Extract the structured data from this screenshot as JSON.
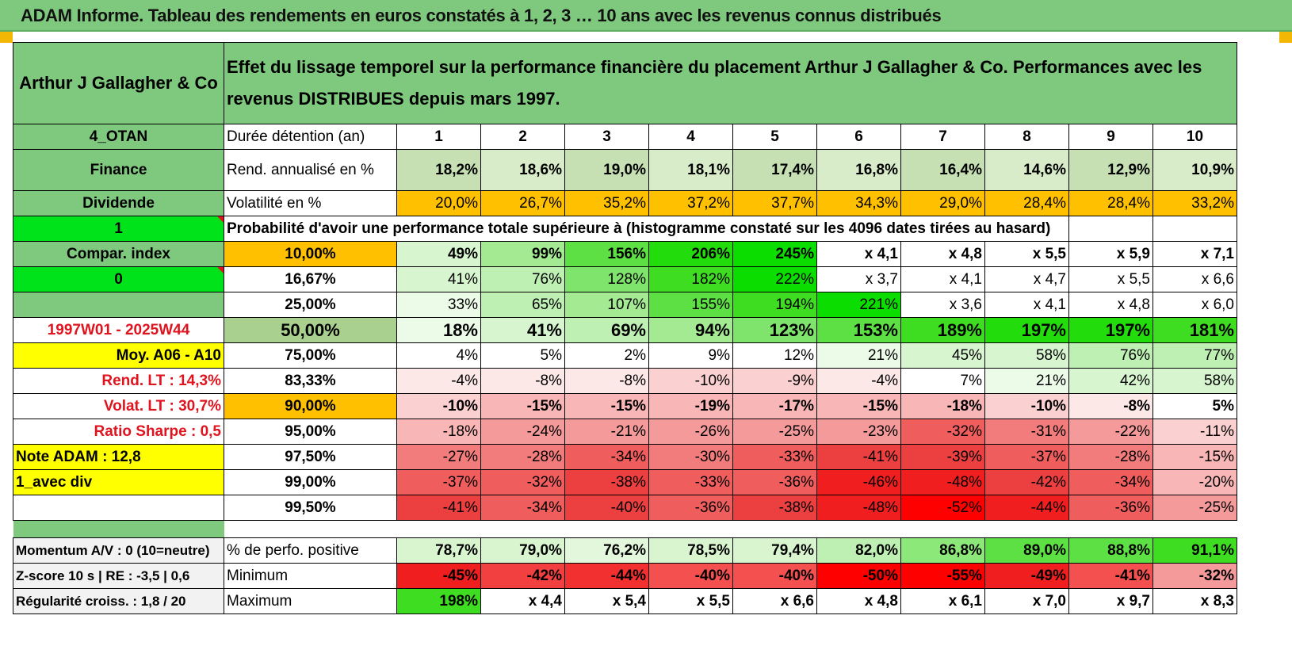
{
  "title": "ADAM Informe. Tableau des rendements en euros constatés à 1, 2, 3 … 10 ans avec les revenus connus distribués",
  "header": {
    "fund": "Arthur J Gallagher & Co",
    "description": "Effet du lissage temporel sur la performance financière du placement Arthur J Gallagher & Co. Performances avec les revenus DISTRIBUES depuis mars 1997."
  },
  "left_labels": {
    "code": "4_OTAN",
    "sector": "Finance",
    "type": "Dividende",
    "flag1": "1",
    "compar": "Compar. index",
    "flag0": "0",
    "period": "1997W01 - 2025W44",
    "moy": "Moy. A06 - A10",
    "rend_lt": "Rend. LT :    14,3%",
    "volat_lt": "Volat. LT :    30,7%",
    "sharpe": "Ratio Sharpe :    0,5",
    "note": "Note ADAM : 12,8",
    "div": "1_avec div",
    "momentum": "Momentum A/V : 0 (10=neutre)",
    "zscore": "Z-score 10 s | RE : -3,5 | 0,6",
    "regularite": "Régularité croiss. : 1,8 / 20"
  },
  "row_labels": {
    "duration": "Durée détention (an)",
    "rend": "Rend. annualisé en %",
    "volat": "Volatilité en %",
    "prob": "Probabilité d'avoir une performance totale supérieure à (histogramme constaté sur les 4096 dates tirées au hasard)",
    "positive": "% de perfo. positive",
    "minimum": "Minimum",
    "maximum": "Maximum"
  },
  "years": [
    "1",
    "2",
    "3",
    "4",
    "5",
    "6",
    "7",
    "8",
    "9",
    "10"
  ],
  "rend": [
    "18,2%",
    "18,6%",
    "19,0%",
    "18,1%",
    "17,4%",
    "16,8%",
    "16,4%",
    "14,6%",
    "12,9%",
    "10,9%"
  ],
  "volat": [
    "20,0%",
    "26,7%",
    "35,2%",
    "37,2%",
    "37,7%",
    "34,3%",
    "29,0%",
    "28,4%",
    "28,4%",
    "33,2%"
  ],
  "quantiles": [
    {
      "p": "10,00%",
      "v": [
        "49%",
        "99%",
        "156%",
        "206%",
        "245%",
        "x 4,1",
        "x 4,8",
        "x 5,5",
        "x 5,9",
        "x 7,1"
      ]
    },
    {
      "p": "16,67%",
      "v": [
        "41%",
        "76%",
        "128%",
        "182%",
        "222%",
        "x 3,7",
        "x 4,1",
        "x 4,7",
        "x 5,5",
        "x 6,6"
      ]
    },
    {
      "p": "25,00%",
      "v": [
        "33%",
        "65%",
        "107%",
        "155%",
        "194%",
        "221%",
        "x 3,6",
        "x 4,1",
        "x 4,8",
        "x 6,0"
      ]
    },
    {
      "p": "50,00%",
      "v": [
        "18%",
        "41%",
        "69%",
        "94%",
        "123%",
        "153%",
        "189%",
        "197%",
        "197%",
        "181%"
      ]
    },
    {
      "p": "75,00%",
      "v": [
        "4%",
        "5%",
        "2%",
        "9%",
        "12%",
        "21%",
        "45%",
        "58%",
        "76%",
        "77%"
      ]
    },
    {
      "p": "83,33%",
      "v": [
        "-4%",
        "-8%",
        "-8%",
        "-10%",
        "-9%",
        "-4%",
        "7%",
        "21%",
        "42%",
        "58%"
      ]
    },
    {
      "p": "90,00%",
      "v": [
        "-10%",
        "-15%",
        "-15%",
        "-19%",
        "-17%",
        "-15%",
        "-18%",
        "-10%",
        "-8%",
        "5%"
      ]
    },
    {
      "p": "95,00%",
      "v": [
        "-18%",
        "-24%",
        "-21%",
        "-26%",
        "-25%",
        "-23%",
        "-32%",
        "-31%",
        "-22%",
        "-11%"
      ]
    },
    {
      "p": "97,50%",
      "v": [
        "-27%",
        "-28%",
        "-34%",
        "-30%",
        "-33%",
        "-41%",
        "-39%",
        "-37%",
        "-28%",
        "-15%"
      ]
    },
    {
      "p": "99,00%",
      "v": [
        "-37%",
        "-32%",
        "-38%",
        "-33%",
        "-36%",
        "-46%",
        "-48%",
        "-42%",
        "-34%",
        "-20%"
      ]
    },
    {
      "p": "99,50%",
      "v": [
        "-41%",
        "-34%",
        "-40%",
        "-36%",
        "-38%",
        "-48%",
        "-52%",
        "-44%",
        "-36%",
        "-25%"
      ]
    }
  ],
  "positive": [
    "78,7%",
    "79,0%",
    "76,2%",
    "78,5%",
    "79,4%",
    "82,0%",
    "86,8%",
    "89,0%",
    "88,8%",
    "91,1%"
  ],
  "minimum": [
    "-45%",
    "-42%",
    "-44%",
    "-40%",
    "-40%",
    "-50%",
    "-55%",
    "-49%",
    "-41%",
    "-32%"
  ],
  "maximum": [
    "198%",
    "x 4,4",
    "x 5,4",
    "x 5,5",
    "x 6,6",
    "x 4,8",
    "x 6,1",
    "x 7,0",
    "x 9,7",
    "x 8,3"
  ],
  "colors": {
    "header_green": "#7fc97f",
    "bright_green": "#00e21a",
    "yellow": "#ffff00",
    "orange": "#ffc000",
    "label_red": "#e0141e"
  }
}
